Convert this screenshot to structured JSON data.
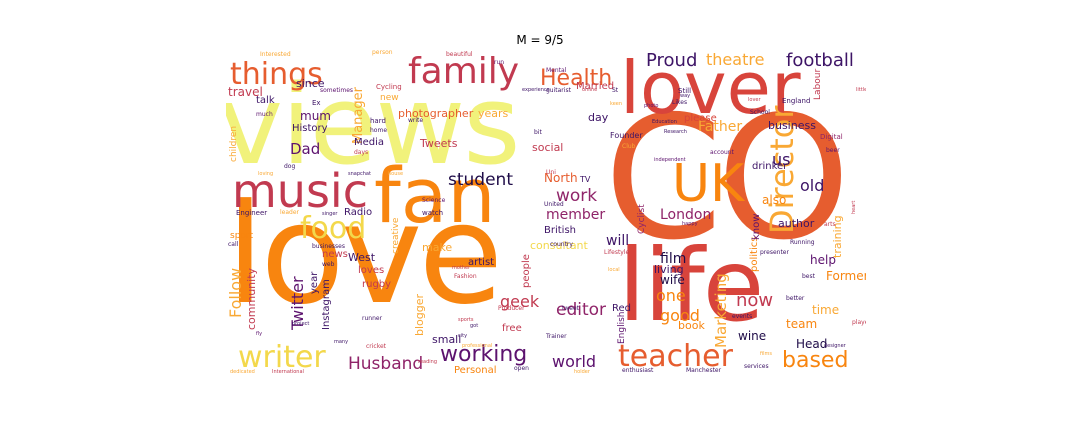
{
  "title": "M = 9/5",
  "palette": {
    "yellow": "#f1f27b",
    "orange": "#f8850f",
    "red": "#d8443b",
    "orange_red": "#e65d2f",
    "light_orange": "#f9a834",
    "crimson": "#c13a50",
    "purple": "#5c126e",
    "dark_purple": "#3d1466",
    "magenta": "#8f2469",
    "navy": "#1f0c48",
    "pale_yellow": "#f3d84b"
  },
  "words": {
    "love": "love",
    "views": "views",
    "co": "CO",
    "fan": "fan",
    "life": "life",
    "lover": "lover",
    "uk": "UK",
    "music": "music",
    "family": "family",
    "things": "things",
    "food": "food",
    "writer": "writer",
    "director": "Director",
    "teacher": "teacher",
    "health": "Health",
    "football": "football",
    "working": "working",
    "based": "based",
    "proud": "Proud",
    "theatre": "theatre",
    "husband": "Husband",
    "student": "student",
    "work": "work",
    "editor": "editor",
    "london": "London",
    "member": "member",
    "marketing": "Marketing",
    "world": "world",
    "follow": "Follow",
    "twitter": "Twitter",
    "father": "Father",
    "manager": "Manager",
    "dad": "Dad",
    "mum": "mum",
    "photographer": "photographer",
    "travel": "travel",
    "now": "now",
    "one": "one",
    "good": "good",
    "geek": "geek",
    "film": "film",
    "will": "will",
    "old": "old",
    "us": "us",
    "also": "also",
    "north": "North",
    "married": "Married",
    "years": "years",
    "since": "since",
    "talk": "talk",
    "history": "History",
    "media": "Media",
    "tweets": "Tweets",
    "social": "social",
    "day": "day",
    "please": "please",
    "live": "live",
    "business": "business",
    "author": "author",
    "drinker": "drinker",
    "training": "training",
    "help": "help",
    "former": "Former",
    "time": "time",
    "team": "team",
    "wine": "wine",
    "head": "Head",
    "book": "book",
    "wife": "wife",
    "living": "living",
    "politics": "politics",
    "know": "know",
    "radio": "Radio",
    "consultant": "consultant",
    "make": "make",
    "artist": "artist",
    "people": "people",
    "blogger": "blogger",
    "instagram": "Instagram",
    "community": "community",
    "year": "year",
    "west": "West",
    "loves": "loves",
    "rugby": "rugby",
    "small": "small",
    "free": "free",
    "red": "Red",
    "english": "English",
    "news": "news",
    "creative": "creative",
    "british": "British",
    "cyclist": "Cyclist",
    "personal": "Personal",
    "sport": "sport",
    "new": "new",
    "children": "children",
    "labour": "Labour",
    "founder": "Founder",
    "tv": "TV",
    "school": "School",
    "england": "England",
    "digital": "Digital",
    "cycling": "Cycling",
    "interested": "Interested",
    "person": "person",
    "beautiful": "beautiful",
    "run": "run",
    "mental": "Mental",
    "guitarist": "guitarist",
    "still": "Still",
    "likes": "Likes",
    "way": "way",
    "ex": "Ex",
    "hard": "hard",
    "home": "home",
    "write": "write",
    "bit": "bit",
    "much": "much",
    "sometimes": "sometimes",
    "research": "Research",
    "club": "Club",
    "account": "account",
    "beer": "beer",
    "independent": "independent",
    "engineer": "Engineer",
    "dog": "dog",
    "loving": "loving",
    "science": "Science",
    "watch": "watch",
    "united": "United",
    "leader": "leader",
    "singer": "singer",
    "heart": "heart",
    "arts": "arts",
    "running": "Running",
    "happy": "happy",
    "country": "country",
    "businesses": "businesses",
    "call": "call",
    "web": "web",
    "fashion": "Fashion",
    "mother": "mother",
    "lifestyle": "Lifestyle",
    "local": "local",
    "presenter": "presenter",
    "best": "best",
    "better": "better",
    "player": "player",
    "project": "project",
    "runner": "runner",
    "producer": "Producer",
    "events": "events",
    "tweet": "tweet",
    "sports": "sports",
    "got": "got",
    "fly": "fly",
    "city": "city",
    "many": "many",
    "cricket": "cricket",
    "professional": "professional",
    "trainer": "Trainer",
    "enthusiast": "enthusiast",
    "manchester": "Manchester",
    "services": "services",
    "open": "open",
    "films": "films",
    "dedicated": "dedicated",
    "international": "International",
    "reading": "reading",
    "holder": "holder",
    "designer": "designer",
    "little": "little",
    "online": "online",
    "education": "Education",
    "keen": "keen",
    "photo": "photo",
    "lover_small": "lover",
    "days": "days",
    "snapchat": "snapchat",
    "house": "house",
    "uni": "Uni",
    "experience": "experience",
    "st": "St"
  }
}
